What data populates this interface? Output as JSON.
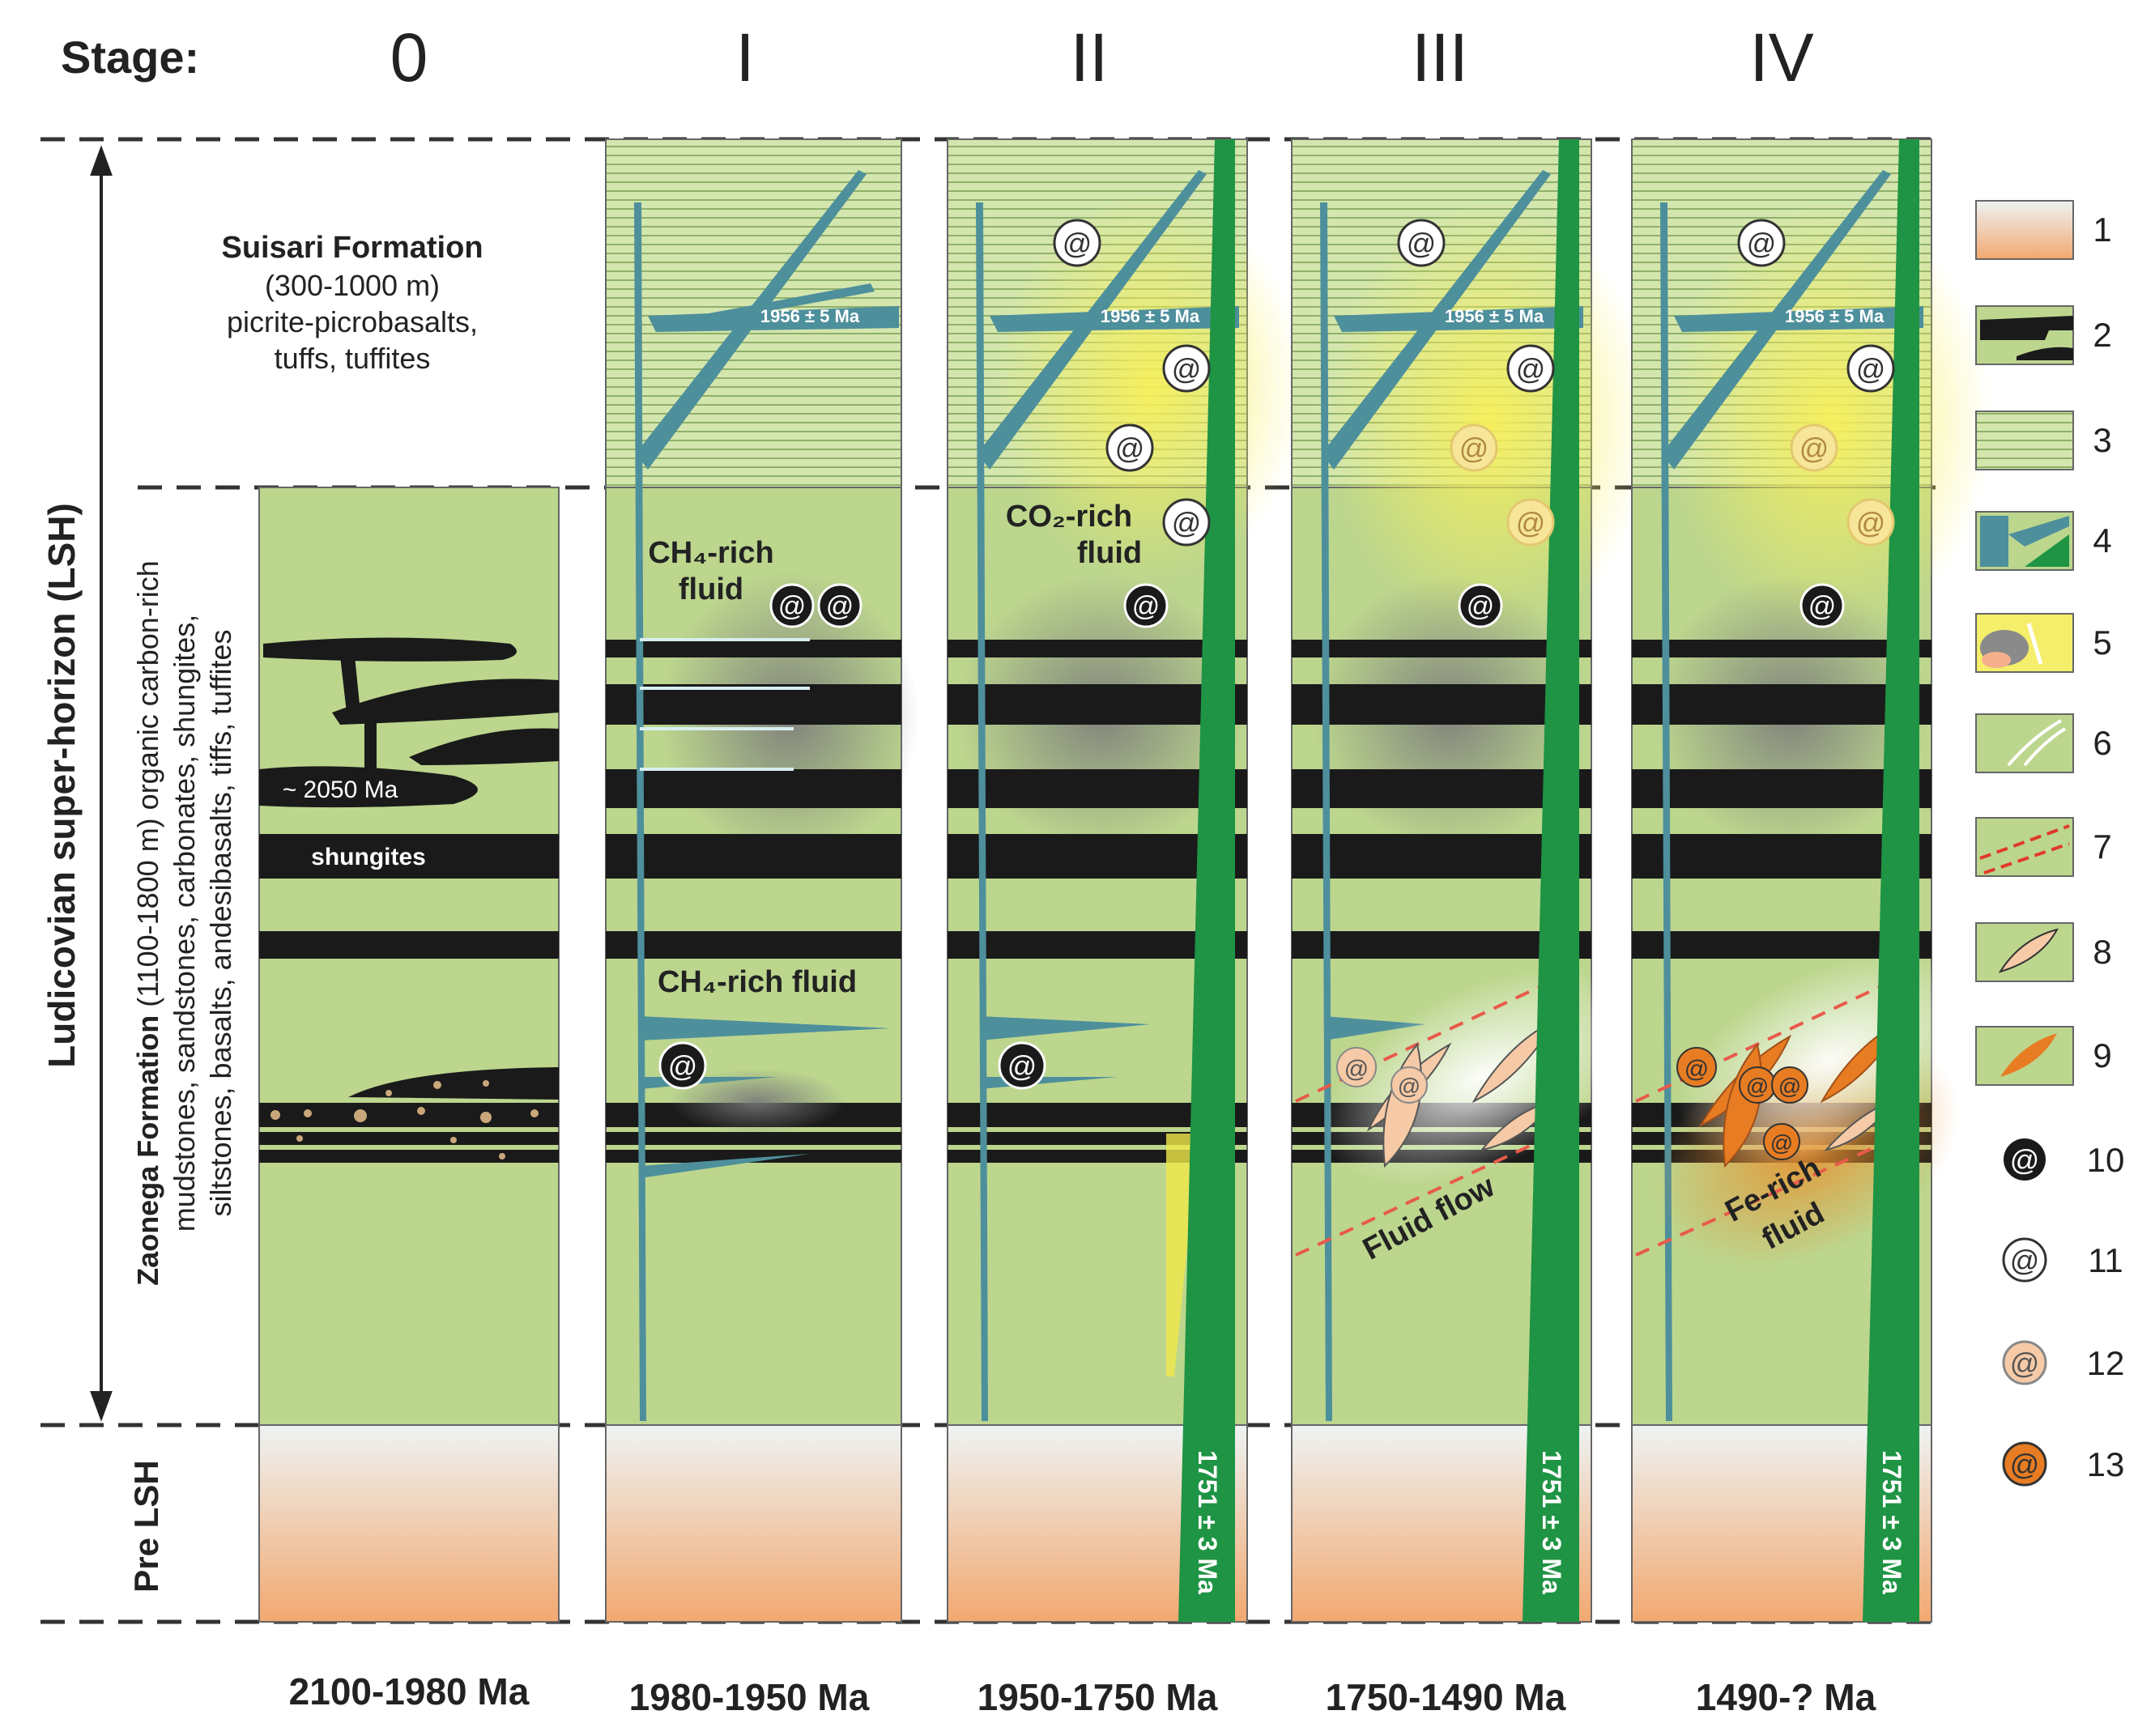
{
  "header": {
    "stage_label": "Stage:",
    "stages": [
      "0",
      "I",
      "II",
      "III",
      "IV"
    ]
  },
  "ages": [
    "2100-1980 Ma",
    "1980-1950 Ma",
    "1950-1750 Ma",
    "1750-1490 Ma",
    "1490-? Ma"
  ],
  "left_axis": {
    "super_horizon": "Ludicovian super-horizon (LSH)",
    "pre_lsh": "Pre LSH",
    "zaonega_name": "Zaonega Formation",
    "zaonega_rest": " (1100-1800 m) organic carbon-rich",
    "zaonega_line2": "mudstones, sandstones, carbonates, shungites,",
    "zaonega_line3": "siltstones, basalts, andesibasalts, tiffs, tuffites"
  },
  "suisari": {
    "name": "Suisari Formation",
    "thickness": "(300-1000 m)",
    "line1": "picrite-picrobasalts,",
    "line2": "tuffs, tuffites"
  },
  "column0": {
    "age_label": "~ 2050 Ma",
    "shungites": "shungites"
  },
  "sill_age": "1956 ± 5 Ma",
  "dyke_age": "1751 ± 3 Ma",
  "fluids": {
    "ch4_upper_1": "CH₄-rich",
    "ch4_upper_2": "fluid",
    "ch4_lower": "CH₄-rich fluid",
    "co2_1": "CO₂-rich",
    "co2_2": "fluid",
    "fluid_flow": "Fluid flow",
    "fe_1": "Fe-rich",
    "fe_2": "fluid"
  },
  "legend": [
    "1",
    "2",
    "3",
    "4",
    "5",
    "6",
    "7",
    "8",
    "9",
    "10",
    "11",
    "12",
    "13"
  ],
  "colors": {
    "zaonega_green": "#bcd68e",
    "suisari_green": "#cfe3a6",
    "basement_orange": "#f2b27e",
    "sill_teal": "#4e8f9c",
    "dyke_green": "#1e9444",
    "shungite_black": "#1a1a1a",
    "co2_yellow": "#f4ee6a",
    "fe_orange": "#e87c22",
    "ellipse_pink": "#f6caa6"
  }
}
